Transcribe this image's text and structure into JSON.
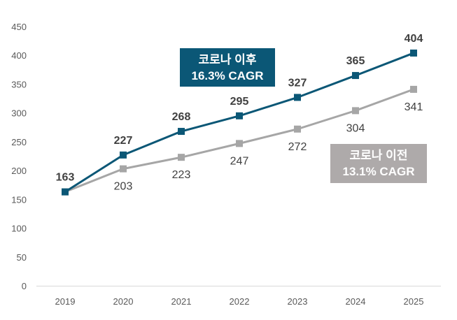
{
  "chart_data": {
    "type": "line",
    "title": "",
    "xlabel": "",
    "ylabel": "",
    "ylim": [
      0,
      450
    ],
    "yticks": [
      0,
      50,
      100,
      150,
      200,
      250,
      300,
      350,
      400,
      450
    ],
    "grid": false,
    "categories": [
      "2019",
      "2020",
      "2021",
      "2022",
      "2023",
      "2024",
      "2025"
    ],
    "series": [
      {
        "name": "after",
        "values": [
          163,
          227,
          268,
          295,
          327,
          365,
          404
        ],
        "labels": [
          "163",
          "227",
          "268",
          "295",
          "327",
          "365",
          "404"
        ],
        "color": "#0b5776"
      },
      {
        "name": "before",
        "values": [
          163,
          203,
          223,
          247,
          272,
          304,
          341
        ],
        "labels": [
          "",
          "203",
          "223",
          "247",
          "272",
          "304",
          "341"
        ],
        "color": "#a6a6a6"
      }
    ],
    "annotations": [
      {
        "series": "after",
        "line1": "코로나 이후",
        "line2": "16.3% CAGR",
        "color": "#0b5776"
      },
      {
        "series": "before",
        "line1": "코로나 이전",
        "line2": "13.1% CAGR",
        "color": "#aeaaaa"
      }
    ]
  }
}
